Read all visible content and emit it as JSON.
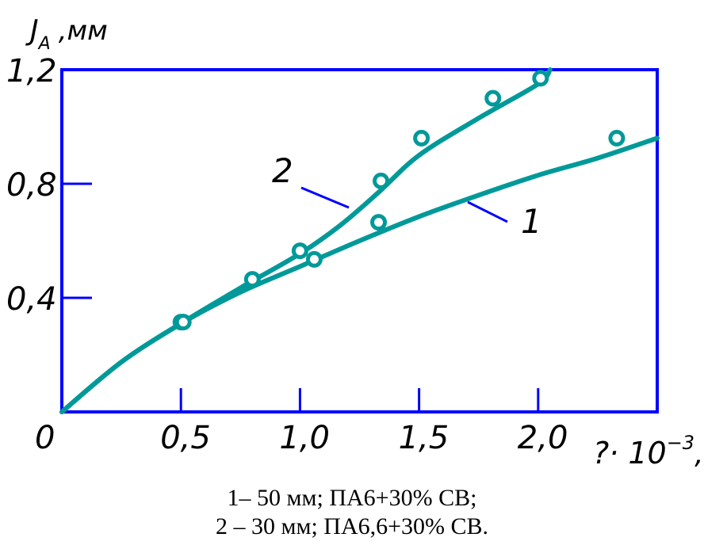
{
  "chart_data": {
    "type": "line",
    "ylabel": "J",
    "ylabel_subscript": "A",
    "ylabel_unit": ",мм",
    "xlabel": "?· 10",
    "xlabel_exponent": "−3",
    "xlabel_unit": ",ч",
    "origin_label": "0",
    "x_ticks": [
      {
        "value": 0.5,
        "label": "0,5"
      },
      {
        "value": 1.0,
        "label": "1,0"
      },
      {
        "value": 1.5,
        "label": "1,5"
      },
      {
        "value": 2.0,
        "label": "2,0"
      }
    ],
    "y_ticks": [
      {
        "value": 0.4,
        "label": "0,4"
      },
      {
        "value": 0.8,
        "label": "0,8"
      },
      {
        "value": 1.2,
        "label": "1,2"
      }
    ],
    "xlim": [
      0,
      2.5
    ],
    "ylim": [
      0,
      1.2
    ],
    "grid": false,
    "series": [
      {
        "name": "1",
        "curve": [
          [
            0,
            0
          ],
          [
            0.25,
            0.175
          ],
          [
            0.5,
            0.31
          ],
          [
            0.75,
            0.42
          ],
          [
            1.0,
            0.51
          ],
          [
            1.25,
            0.6
          ],
          [
            1.5,
            0.685
          ],
          [
            1.75,
            0.76
          ],
          [
            2.0,
            0.83
          ],
          [
            2.25,
            0.89
          ],
          [
            2.5,
            0.96
          ]
        ],
        "points": [
          [
            0.5,
            0.315
          ],
          [
            1.06,
            0.535
          ],
          [
            1.33,
            0.665
          ],
          [
            2.33,
            0.96
          ]
        ]
      },
      {
        "name": "2",
        "curve": [
          [
            0,
            0
          ],
          [
            0.25,
            0.175
          ],
          [
            0.5,
            0.31
          ],
          [
            0.75,
            0.435
          ],
          [
            1.0,
            0.555
          ],
          [
            1.17,
            0.655
          ],
          [
            1.33,
            0.77
          ],
          [
            1.5,
            0.9
          ],
          [
            1.75,
            1.03
          ],
          [
            2.0,
            1.15
          ],
          [
            2.05,
            1.2
          ]
        ],
        "points": [
          [
            0.51,
            0.315
          ],
          [
            0.8,
            0.465
          ],
          [
            1.0,
            0.565
          ],
          [
            1.34,
            0.81
          ],
          [
            1.51,
            0.96
          ],
          [
            1.81,
            1.1
          ],
          [
            2.01,
            1.17
          ]
        ]
      }
    ],
    "colors": {
      "curve": "#009999",
      "axes": "#0000ff",
      "text": "#000000"
    }
  },
  "caption": {
    "line1": "1– 50 мм; ПА6+30%  СВ;",
    "line2": "2 – 30 мм; ПА6,6+30%  СВ."
  }
}
